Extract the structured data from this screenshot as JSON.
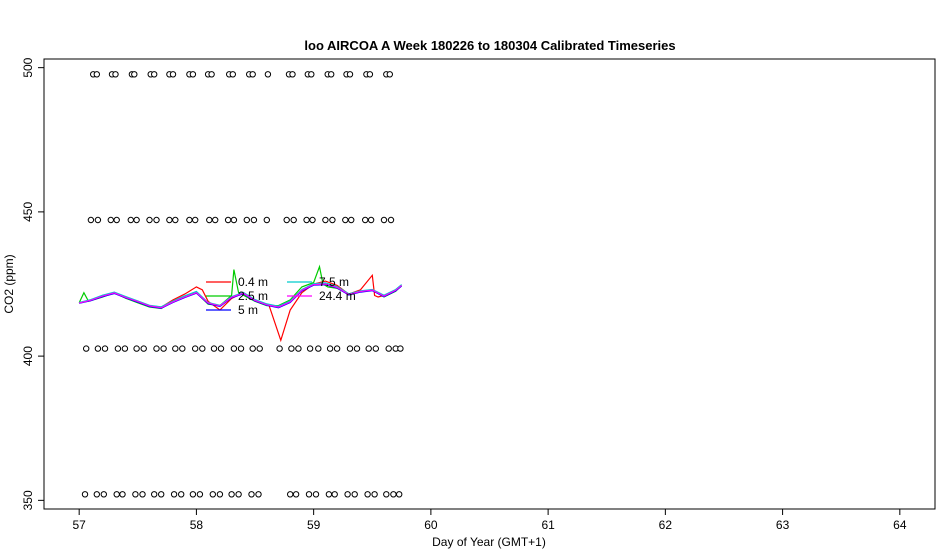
{
  "chart_data": {
    "type": "line",
    "title": "loo AIRCOA A  Week 180226 to 180304  Calibrated Timeseries",
    "xlabel": "Day of Year (GMT+1)",
    "ylabel": "CO2 (ppm)",
    "xlim": [
      56.7,
      64.3
    ],
    "ylim": [
      347,
      503
    ],
    "xticks": [
      57,
      58,
      59,
      60,
      61,
      62,
      63,
      64
    ],
    "yticks": [
      350,
      400,
      450,
      500
    ],
    "grid": false,
    "legend_placement": "center-left",
    "legend": [
      {
        "name": "0.4 m",
        "color": "#ff0000"
      },
      {
        "name": "2.5 m",
        "color": "#00cc00"
      },
      {
        "name": "5 m",
        "color": "#0000ff"
      },
      {
        "name": "7.5 m",
        "color": "#00cccc"
      },
      {
        "name": "24.4 m",
        "color": "#ff00ff"
      }
    ],
    "series": [
      {
        "name": "0.4 m",
        "color": "#ff0000",
        "x": [
          57.0,
          57.1,
          57.2,
          57.3,
          57.4,
          57.5,
          57.6,
          57.7,
          57.8,
          57.9,
          58.0,
          58.05,
          58.1,
          58.2,
          58.3,
          58.4,
          58.5,
          58.6,
          58.62,
          58.72,
          58.8,
          58.9,
          59.0,
          59.1,
          59.2,
          59.3,
          59.4,
          59.5,
          59.52,
          59.55,
          59.6,
          59.7,
          59.75
        ],
        "y": [
          418.5,
          419.5,
          421,
          422,
          420.5,
          419,
          417.5,
          417,
          419.5,
          421.5,
          424,
          423,
          419,
          416,
          420,
          422,
          419.5,
          418,
          417.5,
          405.5,
          416,
          422,
          425,
          426,
          424.5,
          421.5,
          423,
          428,
          421,
          420.5,
          421,
          423,
          424.5
        ]
      },
      {
        "name": "2.5 m",
        "color": "#00cc00",
        "x": [
          57.0,
          57.04,
          57.08,
          57.2,
          57.3,
          57.4,
          57.5,
          57.6,
          57.7,
          57.8,
          57.9,
          58.0,
          58.1,
          58.2,
          58.3,
          58.32,
          58.36,
          58.5,
          58.6,
          58.7,
          58.8,
          58.9,
          59.0,
          59.05,
          59.08,
          59.12,
          59.2,
          59.3,
          59.4,
          59.5,
          59.6,
          59.7,
          59.75
        ],
        "y": [
          418.5,
          422,
          419,
          420.5,
          422,
          420,
          418.5,
          417,
          416.5,
          419,
          420.5,
          422,
          418,
          417.5,
          421,
          430,
          422,
          419,
          417.5,
          417.5,
          419.5,
          424,
          425.5,
          431,
          425,
          424,
          423.5,
          421.5,
          422.5,
          423,
          420.5,
          422.5,
          424.5
        ]
      },
      {
        "name": "5 m",
        "color": "#0000ff",
        "x": [
          57.0,
          57.1,
          57.2,
          57.3,
          57.4,
          57.5,
          57.6,
          57.7,
          57.8,
          57.9,
          58.0,
          58.1,
          58.2,
          58.3,
          58.4,
          58.5,
          58.6,
          58.7,
          58.8,
          58.9,
          59.0,
          59.1,
          59.2,
          59.3,
          59.4,
          59.5,
          59.6,
          59.7,
          59.75
        ],
        "y": [
          418.3,
          419.2,
          420.6,
          421.7,
          420.1,
          418.7,
          417.2,
          416.6,
          418.6,
          420.3,
          421.8,
          418.2,
          417.2,
          420.2,
          421.6,
          419.1,
          417.6,
          416.8,
          418.6,
          422.6,
          424.6,
          424.8,
          423.6,
          421.2,
          422.2,
          422.7,
          420.6,
          422.6,
          424.3
        ]
      },
      {
        "name": "7.5 m",
        "color": "#00cccc",
        "x": [
          57.0,
          57.1,
          57.2,
          57.3,
          57.4,
          57.5,
          57.6,
          57.7,
          57.8,
          57.9,
          58.0,
          58.1,
          58.2,
          58.3,
          58.4,
          58.5,
          58.6,
          58.7,
          58.8,
          58.9,
          59.0,
          59.1,
          59.2,
          59.3,
          59.4,
          59.5,
          59.6,
          59.7,
          59.75
        ],
        "y": [
          418.6,
          419.6,
          421.1,
          422.2,
          420.6,
          419.1,
          417.6,
          417.1,
          419.1,
          420.9,
          422.4,
          418.6,
          417.6,
          420.6,
          422.1,
          419.6,
          418.1,
          417.3,
          419.1,
          423.1,
          425.1,
          425.4,
          424.1,
          421.6,
          422.6,
          423.1,
          421.1,
          423.1,
          424.8
        ]
      },
      {
        "name": "24.4 m",
        "color": "#ff00ff",
        "x": [
          57.0,
          57.1,
          57.2,
          57.3,
          57.4,
          57.5,
          57.6,
          57.7,
          57.8,
          57.9,
          58.0,
          58.1,
          58.2,
          58.3,
          58.4,
          58.5,
          58.6,
          58.7,
          58.8,
          58.9,
          59.0,
          59.1,
          59.2,
          59.3,
          59.4,
          59.5,
          59.6,
          59.7,
          59.75
        ],
        "y": [
          418.4,
          419.4,
          420.8,
          421.9,
          420.3,
          418.9,
          417.4,
          416.8,
          418.8,
          420.5,
          422,
          418.4,
          417.4,
          420.4,
          421.8,
          419.3,
          417.8,
          417,
          418.8,
          422.8,
          424.8,
          425,
          423.8,
          421.4,
          422.4,
          422.9,
          420.8,
          422.8,
          424.5
        ]
      }
    ],
    "calibration_points": [
      {
        "level": 497.7,
        "x": [
          57.12,
          57.15,
          57.28,
          57.31,
          57.45,
          57.47,
          57.61,
          57.64,
          57.77,
          57.8,
          57.94,
          57.97,
          58.1,
          58.13,
          58.28,
          58.31,
          58.45,
          58.48,
          58.61,
          58.79,
          58.82,
          58.95,
          58.98,
          59.12,
          59.15,
          59.28,
          59.31,
          59.45,
          59.48,
          59.62,
          59.65
        ]
      },
      {
        "level": 447.2,
        "x": [
          57.1,
          57.16,
          57.27,
          57.32,
          57.44,
          57.49,
          57.6,
          57.66,
          57.77,
          57.82,
          57.94,
          57.99,
          58.11,
          58.16,
          58.27,
          58.32,
          58.43,
          58.49,
          58.6,
          58.77,
          58.83,
          58.94,
          58.99,
          59.1,
          59.16,
          59.27,
          59.32,
          59.44,
          59.49,
          59.6,
          59.66
        ]
      },
      {
        "level": 402.6,
        "x": [
          57.06,
          57.16,
          57.22,
          57.33,
          57.39,
          57.49,
          57.55,
          57.66,
          57.72,
          57.82,
          57.88,
          57.99,
          58.05,
          58.15,
          58.21,
          58.32,
          58.38,
          58.48,
          58.54,
          58.71,
          58.81,
          58.87,
          58.97,
          59.04,
          59.14,
          59.2,
          59.31,
          59.37,
          59.47,
          59.53,
          59.64,
          59.7,
          59.74
        ]
      },
      {
        "level": 352.1,
        "x": [
          57.05,
          57.15,
          57.21,
          57.32,
          57.37,
          57.48,
          57.54,
          57.64,
          57.7,
          57.81,
          57.87,
          57.97,
          58.03,
          58.14,
          58.2,
          58.3,
          58.36,
          58.47,
          58.53,
          58.8,
          58.85,
          58.96,
          59.02,
          59.13,
          59.18,
          59.29,
          59.35,
          59.46,
          59.52,
          59.62,
          59.68,
          59.73
        ]
      }
    ]
  }
}
